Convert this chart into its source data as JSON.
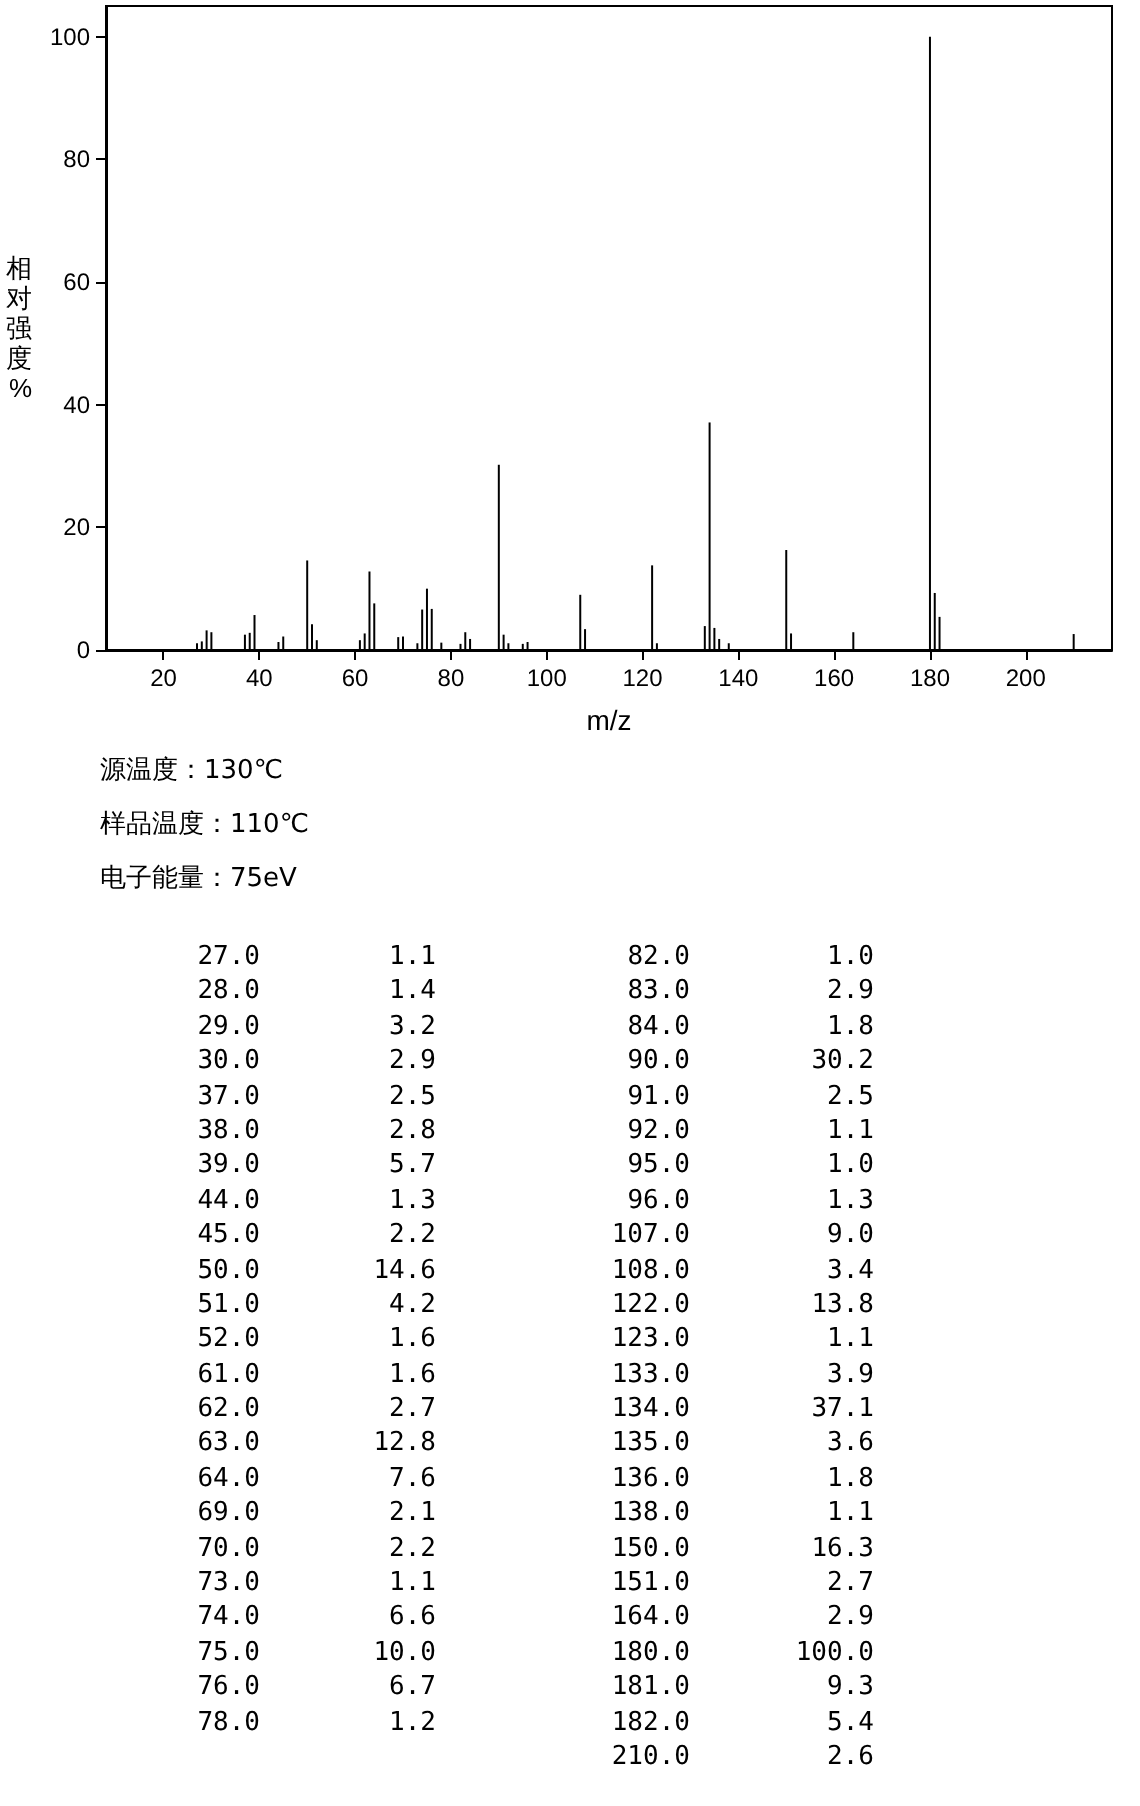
{
  "chart_data": [
    {
      "type": "bar",
      "xlabel": "m/z",
      "ylabel": "相对强度%",
      "color": "#000000",
      "x": [
        27,
        28,
        29,
        30,
        37,
        38,
        39,
        44,
        45,
        50,
        51,
        52,
        61,
        62,
        63,
        64,
        69,
        70,
        73,
        74,
        75,
        76,
        78,
        82,
        83,
        84,
        90,
        91,
        92,
        95,
        96,
        107,
        108,
        122,
        123,
        133,
        134,
        135,
        136,
        138,
        150,
        151,
        164,
        180,
        181,
        182,
        210
      ],
      "values": [
        1.1,
        1.4,
        3.2,
        2.9,
        2.5,
        2.8,
        5.7,
        1.3,
        2.2,
        14.6,
        4.2,
        1.6,
        1.6,
        2.7,
        12.8,
        7.6,
        2.1,
        2.2,
        1.1,
        6.6,
        10.0,
        6.7,
        1.2,
        1.0,
        2.9,
        1.8,
        30.2,
        2.5,
        1.1,
        1.0,
        1.3,
        9.0,
        3.4,
        13.8,
        1.1,
        3.9,
        37.1,
        3.6,
        1.8,
        1.1,
        16.3,
        2.7,
        2.9,
        100.0,
        9.3,
        5.4,
        2.6
      ],
      "xlim": [
        8,
        218
      ],
      "xticks": [
        20,
        40,
        60,
        80,
        100,
        120,
        140,
        160,
        180,
        200
      ],
      "ylim": [
        0,
        105
      ],
      "yticks": [
        0,
        20,
        40,
        60,
        80,
        100
      ],
      "annotations": [
        "源温度：130℃",
        "样品温度：110℃",
        "电子能量：75eV"
      ]
    },
    {
      "type": "other",
      "annotations": [
        "27.0",
        "28.0",
        "29.0",
        "30.0",
        "37.0",
        "38.0",
        "39.0",
        "44.0",
        "45.0",
        "50.0",
        "51.0",
        "52.0",
        "61.0",
        "62.0",
        "63.0",
        "64.0",
        "69.0",
        "70.0",
        "73.0",
        "74.0",
        "75.0",
        "76.0",
        "78.0",
        "1.1",
        "1.4",
        "3.2",
        "2.9",
        "2.5",
        "2.8",
        "5.7",
        "1.3",
        "2.2",
        "14.6",
        "4.2",
        "1.6",
        "1.6",
        "2.7",
        "12.8",
        "7.6",
        "2.1",
        "2.2",
        "1.1",
        "6.6",
        "10.0",
        "6.7",
        "1.2",
        "82.0",
        "83.0",
        "84.0",
        "90.0",
        "91.0",
        "92.0",
        "95.0",
        "96.0",
        "107.0",
        "108.0",
        "122.0",
        "123.0",
        "133.0",
        "134.0",
        "135.0",
        "136.0",
        "138.0",
        "150.0",
        "151.0",
        "164.0",
        "180.0",
        "181.0",
        "182.0",
        "210.0",
        "1.0",
        "2.9",
        "1.8",
        "30.2",
        "2.5",
        "1.1",
        "1.0",
        "1.3",
        "9.0",
        "3.4",
        "13.8",
        "1.1",
        "3.9",
        "37.1",
        "3.6",
        "1.8",
        "1.1",
        "16.3",
        "2.7",
        "2.9",
        "100.0",
        "9.3",
        "5.4",
        "2.6"
      ]
    }
  ]
}
